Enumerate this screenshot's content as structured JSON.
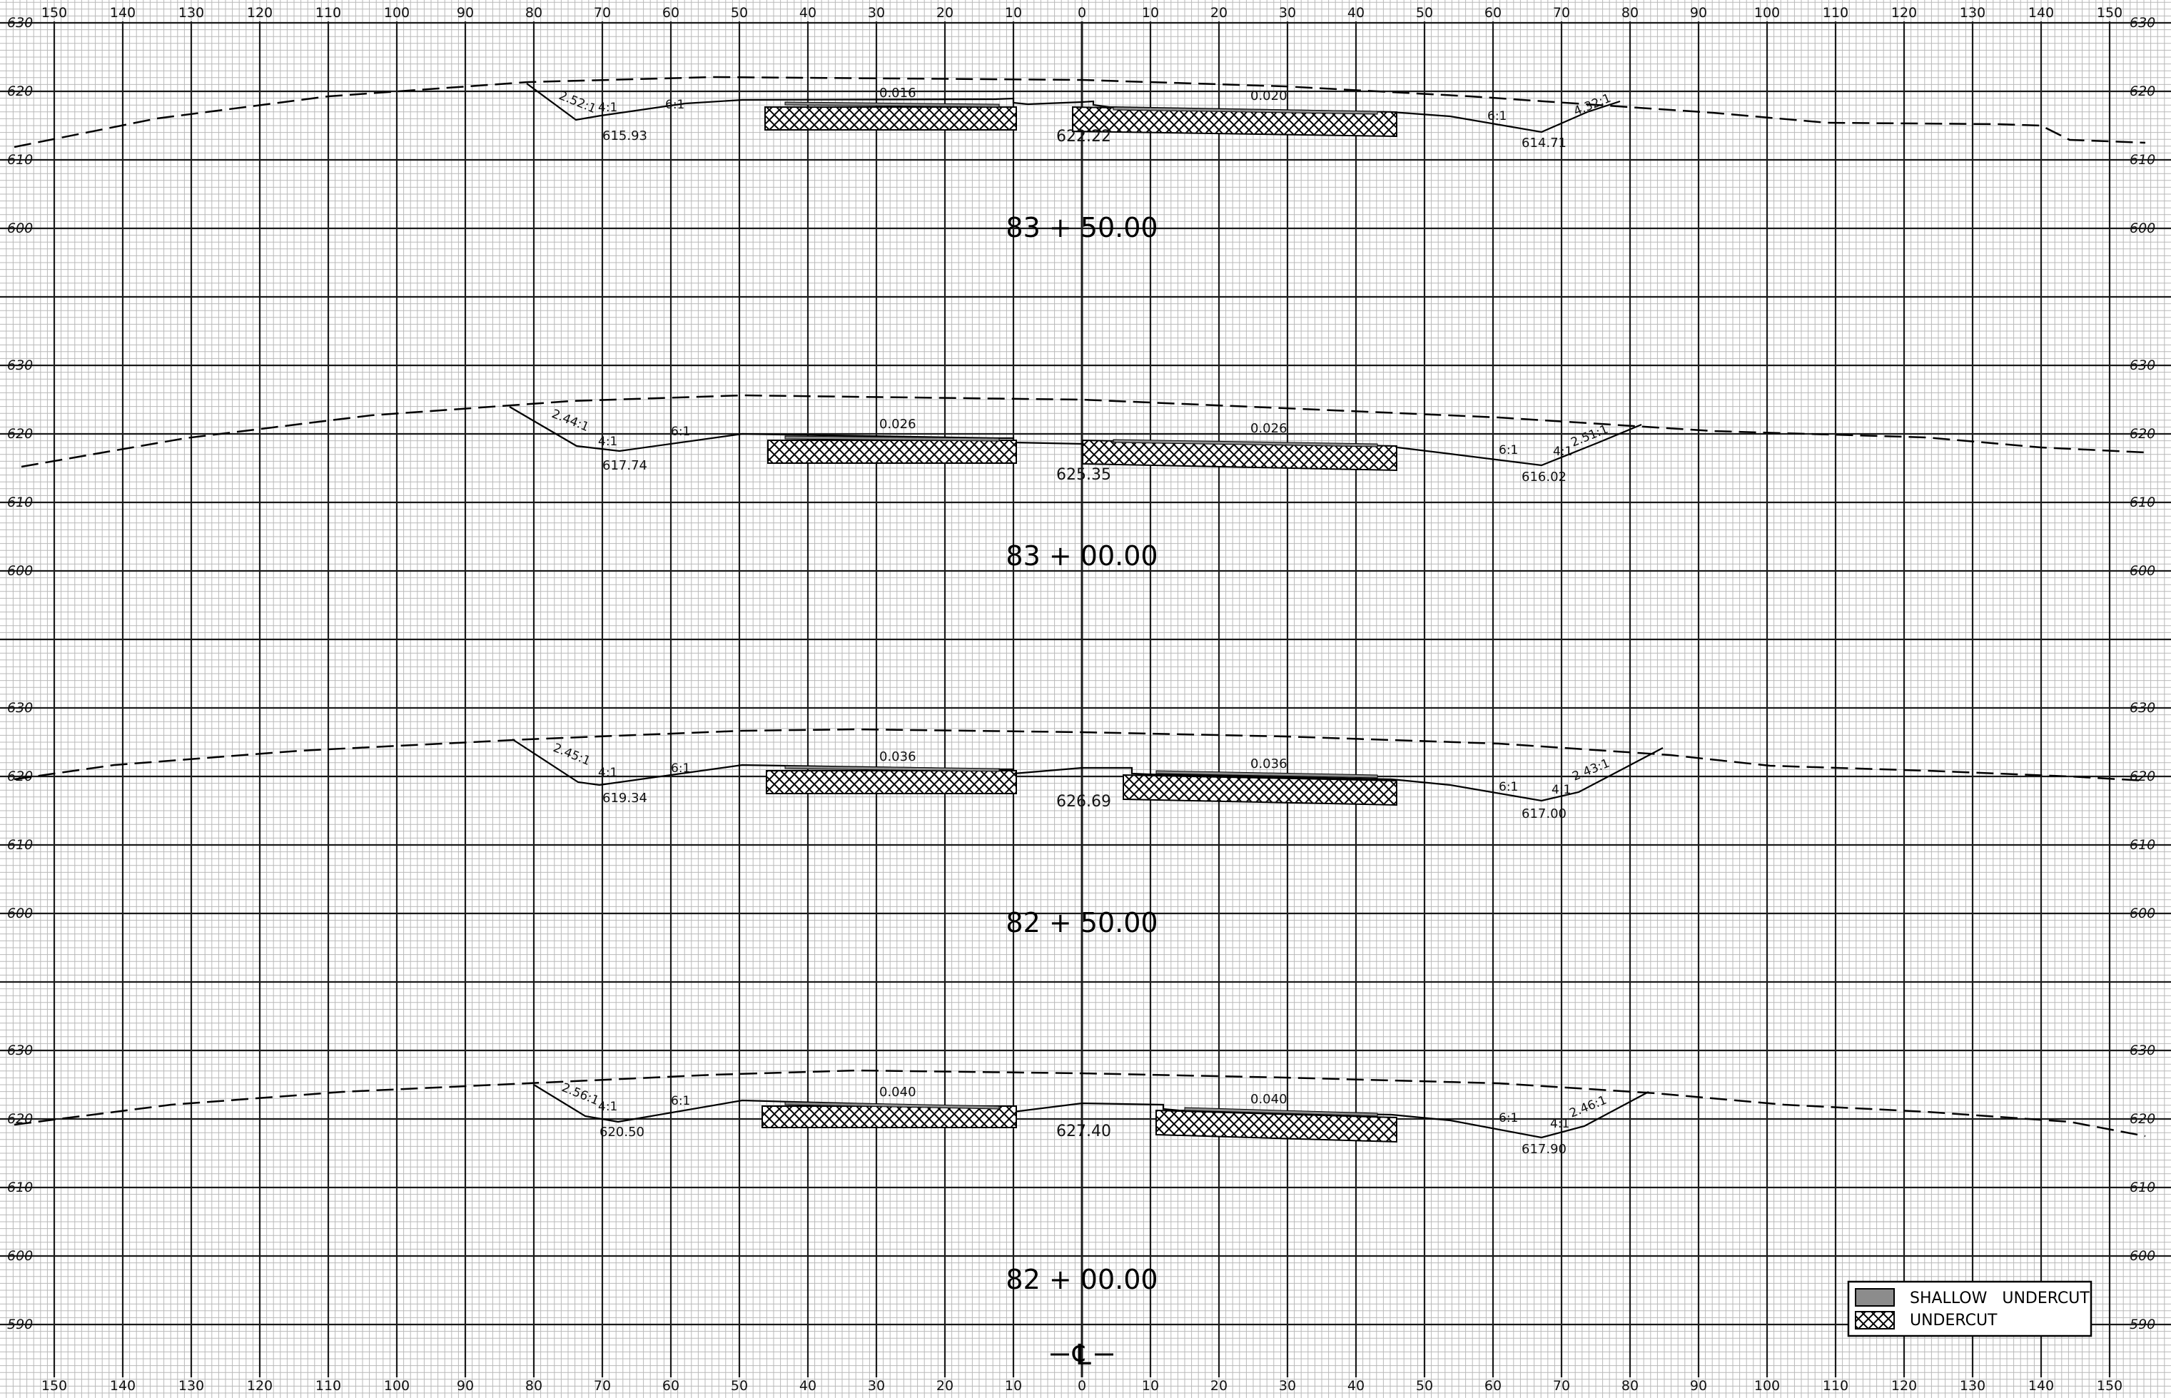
{
  "grid": {
    "offsets_top": [
      "150",
      "140",
      "130",
      "120",
      "110",
      "100",
      "90",
      "80",
      "70",
      "60",
      "50",
      "40",
      "30",
      "20",
      "10",
      "0",
      "10",
      "20",
      "30",
      "40",
      "50",
      "60",
      "70",
      "80",
      "90",
      "100",
      "110",
      "120",
      "130",
      "140",
      "150"
    ],
    "offsets_bottom": [
      "150",
      "140",
      "130",
      "120",
      "110",
      "100",
      "90",
      "80",
      "70",
      "60",
      "50",
      "40",
      "30",
      "20",
      "10",
      "0",
      "10",
      "20",
      "30",
      "40",
      "50",
      "60",
      "70",
      "80",
      "90",
      "100",
      "110",
      "120",
      "130",
      "140",
      "150"
    ]
  },
  "sections": [
    {
      "station": "83 + 50.00",
      "elevations": [
        "630",
        "620",
        "610",
        "600"
      ],
      "cl_elev": "622.22",
      "left_ditch_elev": "615.93",
      "right_ditch_elev": "614.71",
      "left_slope": "0.016",
      "right_slope": "0.020",
      "left_back": "2.52:1",
      "left_fore": "4:1",
      "left_shoulder": "6:1",
      "right_shoulder": "6:1",
      "right_fore": "4:1",
      "right_back": "4.32:1"
    },
    {
      "station": "83 + 00.00",
      "elevations": [
        "630",
        "620",
        "610",
        "600"
      ],
      "cl_elev": "625.35",
      "left_ditch_elev": "617.74",
      "right_ditch_elev": "616.02",
      "left_slope": "0.026",
      "right_slope": "0.026",
      "left_back": "2.44:1",
      "left_fore": "4:1",
      "left_shoulder": "6:1",
      "right_shoulder": "6:1",
      "right_fore": "4:1",
      "right_back": "2.51:1"
    },
    {
      "station": "82 + 50.00",
      "elevations": [
        "630",
        "620",
        "610",
        "600"
      ],
      "cl_elev": "626.69",
      "left_ditch_elev": "619.34",
      "right_ditch_elev": "617.00",
      "left_slope": "0.036",
      "right_slope": "0.036",
      "left_back": "2.45:1",
      "left_fore": "4:1",
      "left_shoulder": "6:1",
      "right_shoulder": "6:1",
      "right_fore": "4:1",
      "right_back": "2.43:1"
    },
    {
      "station": "82 + 00.00",
      "elevations": [
        "630",
        "620",
        "610",
        "600",
        "590"
      ],
      "cl_elev": "627.40",
      "left_ditch_elev": "620.50",
      "right_ditch_elev": "617.90",
      "left_slope": "0.040",
      "right_slope": "0.040",
      "left_back": "2.56:1",
      "left_fore": "4:1",
      "left_shoulder": "6:1",
      "right_shoulder": "6:1",
      "right_fore": "4:1",
      "right_back": "2.46:1"
    }
  ],
  "centerline_symbol": "℄",
  "legend": {
    "shallow_label": "SHALLOW   UNDERCUT",
    "undercut_label": "UNDERCUT"
  },
  "colors": {
    "grid_minor": "#b9b9b9",
    "grid_major": "#1a1a1a",
    "shallow_fill": "#8c8c8c"
  }
}
